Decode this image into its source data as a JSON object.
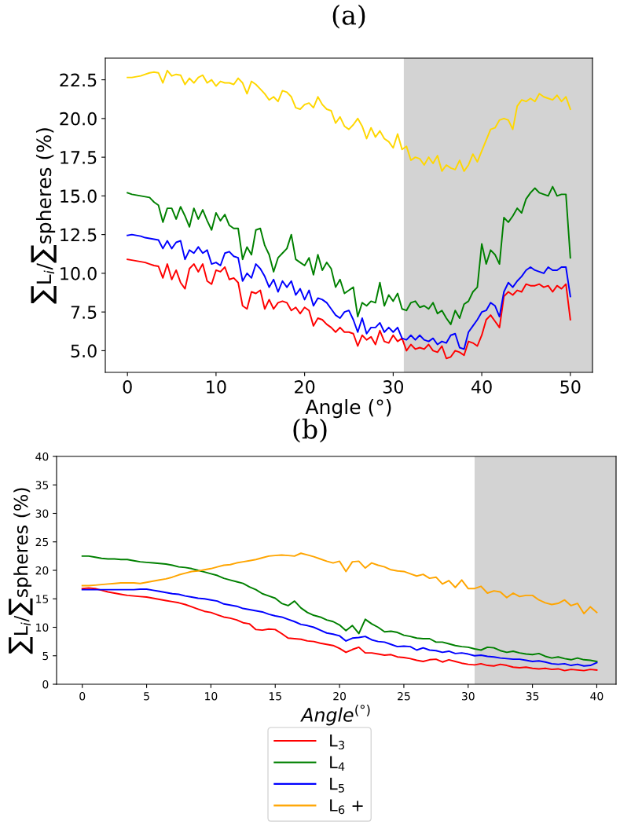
{
  "chart_data": [
    {
      "type": "line",
      "title": "(a)",
      "xlabel": "Angle (°)",
      "ylabel": "∑L$_{i}$/∑spheres (%)",
      "x": [
        0,
        0.5,
        1,
        1.5,
        2,
        2.5,
        3,
        3.5,
        4,
        4.5,
        5,
        5.5,
        6,
        6.5,
        7,
        7.5,
        8,
        8.5,
        9,
        9.5,
        10,
        10.5,
        11,
        11.5,
        12,
        12.5,
        13,
        13.5,
        14,
        14.5,
        15,
        15.5,
        16,
        16.5,
        17,
        17.5,
        18,
        18.5,
        19,
        19.5,
        20,
        20.5,
        21,
        21.5,
        22,
        22.5,
        23,
        23.5,
        24,
        24.5,
        25,
        25.5,
        26,
        26.5,
        27,
        27.5,
        28,
        28.5,
        29,
        29.5,
        30,
        30.5,
        31,
        31.5,
        32,
        32.5,
        33,
        33.5,
        34,
        34.5,
        35,
        35.5,
        36,
        36.5,
        37,
        37.5,
        38,
        38.5,
        39,
        39.5,
        40,
        40.5,
        41,
        41.5,
        42,
        42.5,
        43,
        43.5,
        44,
        44.5,
        45,
        45.5,
        46,
        46.5,
        47,
        47.5,
        48,
        48.5,
        49,
        49.5,
        50
      ],
      "series": [
        {
          "color": "#ff0000",
          "values": [
            10.9,
            10.85,
            10.8,
            10.75,
            10.7,
            10.6,
            10.5,
            10.45,
            9.7,
            10.6,
            9.6,
            10.2,
            9.4,
            9.0,
            10.3,
            10.6,
            10.1,
            10.6,
            9.5,
            9.3,
            10.2,
            10.1,
            10.4,
            9.6,
            9.7,
            9.4,
            7.9,
            7.7,
            8.8,
            8.7,
            8.9,
            7.7,
            8.3,
            7.7,
            8.1,
            8.2,
            8.1,
            7.6,
            7.8,
            7.4,
            7.8,
            7.6,
            6.6,
            7.1,
            7.0,
            6.7,
            6.5,
            6.2,
            6.5,
            6.2,
            6.2,
            6.1,
            5.3,
            6.0,
            5.7,
            5.9,
            5.4,
            6.3,
            5.6,
            5.5,
            6.0,
            5.6,
            5.8,
            5.0,
            5.4,
            5.1,
            5.2,
            5.1,
            5.4,
            5.0,
            4.9,
            5.3,
            4.5,
            4.6,
            5.0,
            4.9,
            4.7,
            5.6,
            5.5,
            5.3,
            6.0,
            7.0,
            7.3,
            6.9,
            6.5,
            8.5,
            8.8,
            8.6,
            8.9,
            8.8,
            9.3,
            9.2,
            9.2,
            9.3,
            9.1,
            9.2,
            8.8,
            9.2,
            9.0,
            9.3,
            7.0
          ]
        },
        {
          "color": "#008000",
          "values": [
            15.2,
            15.1,
            15.05,
            15.0,
            14.95,
            14.9,
            14.6,
            14.4,
            13.3,
            14.2,
            14.2,
            13.5,
            14.3,
            13.7,
            13.0,
            14.2,
            13.5,
            14.1,
            13.4,
            12.8,
            13.9,
            13.4,
            13.8,
            13.1,
            12.9,
            12.9,
            10.9,
            11.7,
            11.2,
            12.8,
            12.9,
            11.8,
            11.2,
            10.1,
            11.0,
            11.3,
            11.6,
            12.5,
            10.9,
            10.7,
            10.5,
            11.0,
            9.9,
            11.2,
            10.2,
            10.7,
            10.3,
            9.1,
            9.6,
            8.7,
            8.9,
            9.1,
            7.2,
            8.1,
            7.9,
            8.2,
            8.1,
            9.4,
            7.9,
            8.6,
            8.2,
            8.7,
            7.7,
            7.6,
            8.1,
            8.2,
            7.8,
            7.9,
            7.7,
            8.1,
            7.4,
            7.6,
            7.1,
            6.7,
            7.6,
            7.1,
            8.0,
            8.2,
            8.8,
            9.1,
            11.9,
            10.6,
            11.5,
            11.2,
            10.6,
            13.6,
            13.3,
            13.7,
            14.2,
            13.9,
            14.8,
            15.2,
            15.5,
            15.2,
            15.1,
            15.0,
            15.6,
            15.0,
            15.1,
            15.1,
            11.0
          ]
        },
        {
          "color": "#0000ff",
          "values": [
            12.45,
            12.5,
            12.45,
            12.4,
            12.3,
            12.25,
            12.2,
            12.15,
            11.6,
            12.1,
            11.6,
            12.0,
            12.1,
            10.9,
            11.5,
            11.3,
            11.7,
            11.3,
            11.5,
            10.6,
            10.7,
            10.5,
            11.3,
            11.4,
            11.1,
            11.0,
            9.5,
            10.0,
            9.7,
            10.6,
            10.3,
            9.8,
            9.1,
            9.6,
            8.8,
            9.5,
            9.1,
            9.5,
            8.6,
            9.0,
            8.3,
            8.9,
            7.9,
            8.4,
            8.3,
            8.1,
            7.7,
            7.3,
            7.1,
            7.5,
            7.6,
            7.0,
            6.2,
            7.1,
            6.1,
            6.5,
            6.5,
            6.8,
            6.2,
            6.5,
            6.2,
            6.5,
            5.8,
            5.7,
            6.0,
            5.7,
            6.0,
            5.7,
            5.6,
            5.8,
            5.4,
            5.6,
            5.5,
            6.0,
            6.1,
            5.2,
            5.1,
            6.2,
            6.6,
            7.0,
            7.5,
            7.6,
            8.1,
            7.9,
            7.2,
            8.8,
            9.4,
            9.1,
            9.5,
            9.8,
            10.2,
            10.4,
            10.2,
            10.1,
            10.0,
            10.4,
            10.2,
            10.2,
            10.4,
            10.4,
            8.5
          ]
        },
        {
          "color": "#ffd700",
          "values": [
            22.65,
            22.65,
            22.7,
            22.75,
            22.85,
            22.95,
            23.0,
            22.95,
            22.3,
            23.1,
            22.75,
            22.85,
            22.8,
            22.2,
            22.6,
            22.3,
            22.65,
            22.8,
            22.3,
            22.5,
            22.1,
            22.4,
            22.3,
            22.3,
            22.2,
            22.6,
            22.3,
            21.6,
            22.4,
            22.2,
            21.9,
            21.6,
            21.2,
            21.4,
            21.1,
            21.8,
            21.7,
            21.4,
            20.7,
            20.6,
            20.9,
            21.0,
            20.7,
            21.4,
            20.9,
            20.6,
            20.5,
            19.7,
            20.1,
            19.5,
            19.3,
            19.6,
            20.0,
            19.5,
            18.7,
            19.4,
            18.8,
            19.2,
            18.7,
            18.5,
            18.1,
            19.0,
            18.0,
            18.2,
            17.3,
            17.5,
            17.4,
            17.0,
            17.5,
            17.1,
            17.6,
            16.6,
            17.0,
            16.8,
            16.7,
            17.3,
            16.6,
            17.0,
            17.7,
            17.2,
            17.9,
            18.6,
            19.3,
            19.4,
            19.9,
            20.0,
            19.9,
            19.3,
            20.8,
            21.2,
            21.1,
            21.3,
            21.1,
            21.6,
            21.4,
            21.3,
            21.2,
            21.5,
            21.1,
            21.4,
            20.6
          ]
        }
      ],
      "xlim": [
        -2.5,
        52.5
      ],
      "ylim": [
        3.6,
        23.9
      ],
      "xticks": [
        0,
        10,
        20,
        30,
        40,
        50
      ],
      "yticks": [
        {
          "value": 5,
          "label": "5.0"
        },
        {
          "value": 7.5,
          "label": "7.5"
        },
        {
          "value": 10,
          "label": "10.0"
        },
        {
          "value": 12.5,
          "label": "12.5"
        },
        {
          "value": 15,
          "label": "15.0"
        },
        {
          "value": 17.5,
          "label": "17.5"
        },
        {
          "value": 20,
          "label": "20.0"
        },
        {
          "value": 22.5,
          "label": "22.5"
        }
      ],
      "bands": [
        {
          "axis": "x",
          "from": 31.2,
          "to": 52.5
        }
      ],
      "grid": false,
      "legend": false
    },
    {
      "type": "line",
      "title": "(b)",
      "xlabel": "Angle$^{(°)}$",
      "ylabel": "∑L$_{i}$/∑spheres (%)",
      "x": [
        0,
        0.5,
        1,
        1.5,
        2,
        2.5,
        3,
        3.5,
        4,
        4.5,
        5,
        5.5,
        6,
        6.5,
        7,
        7.5,
        8,
        8.5,
        9,
        9.5,
        10,
        10.5,
        11,
        11.5,
        12,
        12.5,
        13,
        13.5,
        14,
        14.5,
        15,
        15.5,
        16,
        16.5,
        17,
        17.5,
        18,
        18.5,
        19,
        19.5,
        20,
        20.5,
        21,
        21.5,
        22,
        22.5,
        23,
        23.5,
        24,
        24.5,
        25,
        25.5,
        26,
        26.5,
        27,
        27.5,
        28,
        28.5,
        29,
        29.5,
        30,
        30.5,
        31,
        31.5,
        32,
        32.5,
        33,
        33.5,
        34,
        34.5,
        35,
        35.5,
        36,
        36.5,
        37,
        37.5,
        38,
        38.5,
        39,
        39.5,
        40
      ],
      "series": [
        {
          "name": "L$_{3}$",
          "color": "#ff0000",
          "values": [
            16.8,
            16.9,
            16.8,
            16.5,
            16.2,
            16.0,
            15.8,
            15.6,
            15.5,
            15.4,
            15.3,
            15.1,
            14.9,
            14.7,
            14.5,
            14.3,
            14.0,
            13.6,
            13.2,
            12.8,
            12.6,
            12.2,
            11.8,
            11.6,
            11.3,
            10.8,
            10.6,
            9.6,
            9.5,
            9.7,
            9.6,
            8.9,
            8.1,
            8.0,
            7.9,
            7.6,
            7.5,
            7.2,
            7.0,
            6.8,
            6.3,
            5.6,
            6.1,
            6.5,
            5.5,
            5.5,
            5.3,
            5.1,
            5.2,
            4.8,
            4.7,
            4.5,
            4.2,
            4.0,
            4.3,
            4.4,
            3.9,
            4.3,
            4.0,
            3.7,
            3.5,
            3.4,
            3.6,
            3.3,
            3.2,
            3.5,
            3.3,
            3.0,
            2.9,
            3.0,
            2.8,
            2.7,
            2.8,
            2.6,
            2.7,
            2.4,
            2.6,
            2.5,
            2.4,
            2.6,
            2.5
          ]
        },
        {
          "name": "L$_{4}$",
          "color": "#008000",
          "values": [
            22.5,
            22.5,
            22.3,
            22.1,
            22.0,
            22.0,
            21.9,
            21.9,
            21.7,
            21.5,
            21.4,
            21.3,
            21.2,
            21.1,
            20.9,
            20.6,
            20.5,
            20.3,
            20.0,
            19.7,
            19.4,
            19.1,
            18.6,
            18.3,
            18.0,
            17.7,
            17.1,
            16.6,
            15.9,
            15.5,
            15.1,
            14.2,
            13.8,
            14.6,
            13.4,
            12.6,
            12.1,
            11.8,
            11.3,
            11.0,
            10.4,
            9.4,
            10.3,
            8.9,
            11.4,
            10.6,
            10.0,
            9.2,
            9.3,
            9.1,
            8.6,
            8.4,
            8.1,
            8.0,
            8.0,
            7.4,
            7.4,
            7.1,
            6.8,
            6.6,
            6.5,
            6.2,
            6.0,
            6.5,
            6.4,
            5.9,
            5.6,
            5.8,
            5.5,
            5.3,
            5.2,
            5.4,
            4.9,
            4.6,
            4.8,
            4.5,
            4.3,
            4.6,
            4.3,
            4.2,
            4.0
          ]
        },
        {
          "name": "L$_{5}$",
          "color": "#0000ff",
          "values": [
            16.6,
            16.6,
            16.6,
            16.6,
            16.6,
            16.6,
            16.6,
            16.6,
            16.6,
            16.7,
            16.7,
            16.5,
            16.3,
            16.1,
            15.9,
            15.8,
            15.5,
            15.3,
            15.1,
            15.0,
            14.8,
            14.6,
            14.1,
            13.9,
            13.7,
            13.3,
            13.1,
            12.9,
            12.7,
            12.3,
            12.0,
            11.8,
            11.4,
            11.0,
            10.5,
            10.3,
            10.0,
            9.5,
            9.0,
            8.8,
            8.5,
            7.6,
            8.1,
            8.2,
            8.4,
            7.8,
            7.5,
            7.4,
            7.0,
            6.6,
            6.7,
            6.6,
            6.0,
            6.4,
            6.0,
            5.9,
            5.6,
            5.8,
            5.4,
            5.5,
            5.3,
            5.0,
            5.1,
            4.9,
            4.8,
            4.6,
            4.5,
            4.4,
            4.4,
            4.2,
            4.0,
            4.1,
            3.9,
            3.6,
            3.5,
            3.6,
            3.3,
            3.5,
            3.2,
            3.3,
            3.8
          ]
        },
        {
          "name": "L$_{6}$ +",
          "color": "#ffa500",
          "values": [
            17.3,
            17.3,
            17.4,
            17.5,
            17.6,
            17.7,
            17.8,
            17.8,
            17.8,
            17.7,
            17.9,
            18.1,
            18.3,
            18.5,
            18.8,
            19.2,
            19.5,
            19.8,
            19.9,
            20.1,
            20.3,
            20.6,
            20.9,
            21.0,
            21.3,
            21.5,
            21.7,
            21.9,
            22.2,
            22.5,
            22.6,
            22.7,
            22.6,
            22.5,
            23.0,
            22.7,
            22.4,
            22.0,
            21.6,
            21.3,
            21.6,
            19.8,
            21.5,
            21.6,
            20.4,
            21.3,
            20.9,
            20.6,
            20.1,
            19.9,
            19.8,
            19.4,
            19.0,
            19.3,
            18.6,
            18.8,
            17.6,
            18.2,
            17.0,
            18.3,
            16.8,
            16.8,
            17.2,
            16.0,
            16.4,
            16.2,
            15.2,
            16.0,
            15.4,
            15.6,
            15.6,
            14.8,
            14.3,
            14.0,
            14.2,
            14.8,
            13.8,
            14.2,
            12.4,
            13.6,
            12.6
          ]
        }
      ],
      "xlim": [
        -2,
        41.5
      ],
      "ylim": [
        0,
        40
      ],
      "xticks": [
        0,
        5,
        10,
        15,
        20,
        25,
        30,
        35,
        40
      ],
      "yticks": [
        0,
        5,
        10,
        15,
        20,
        25,
        30,
        35,
        40
      ],
      "bands": [
        {
          "axis": "x",
          "from": 30.5,
          "to": 41.5
        }
      ],
      "grid": false,
      "legend": "bottom"
    }
  ]
}
